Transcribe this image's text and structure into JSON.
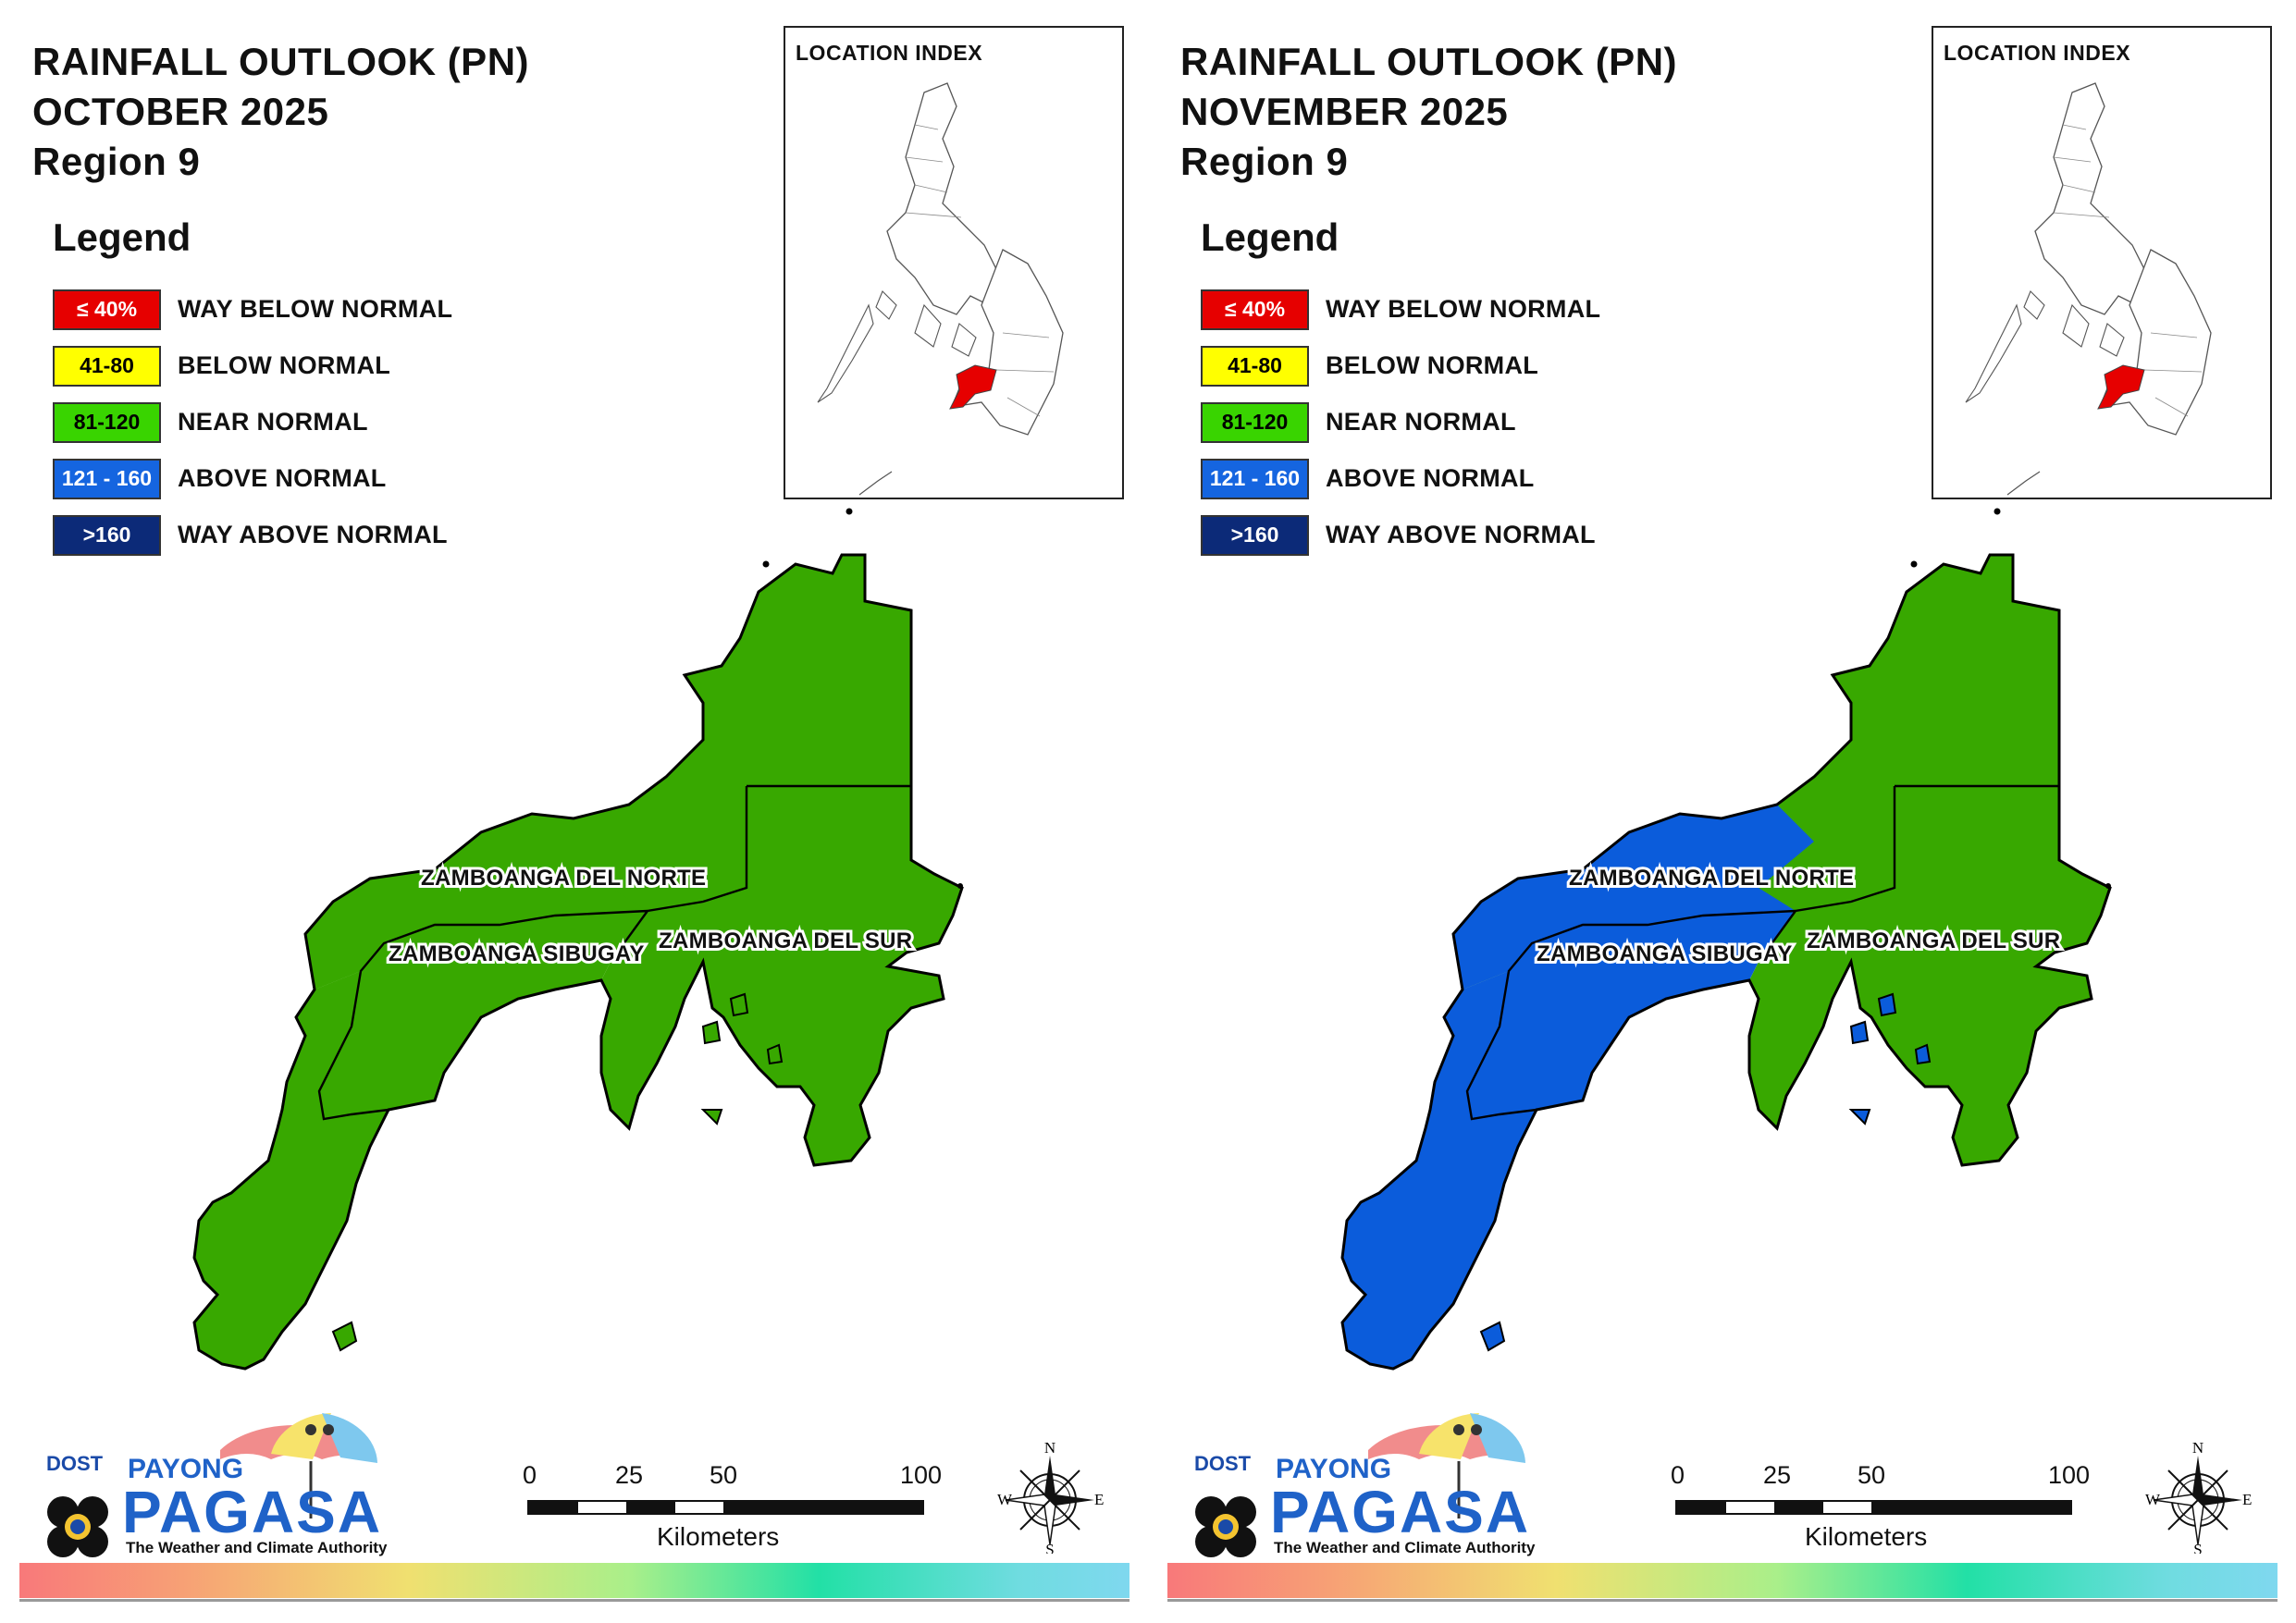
{
  "maps": [
    {
      "title": [
        "RAINFALL OUTLOOK (PN)",
        "OCTOBER 2025",
        "Region 9"
      ],
      "provinces": {
        "norte": {
          "label": "ZAMBOANGA DEL NORTE",
          "category": "NEAR NORMAL"
        },
        "sibugay": {
          "label": "ZAMBOANGA SIBUGAY",
          "category": "NEAR NORMAL"
        },
        "sur": {
          "label": "ZAMBOANGA DEL SUR",
          "category": "NEAR NORMAL"
        },
        "west": {
          "category": "NEAR NORMAL"
        }
      }
    },
    {
      "title": [
        "RAINFALL OUTLOOK (PN)",
        "NOVEMBER 2025",
        "Region 9"
      ],
      "provinces": {
        "norte": {
          "label": "ZAMBOANGA DEL NORTE",
          "category": "NEAR NORMAL",
          "west_category": "ABOVE NORMAL"
        },
        "sibugay": {
          "label": "ZAMBOANGA SIBUGAY",
          "category": "ABOVE NORMAL"
        },
        "sur": {
          "label": "ZAMBOANGA DEL SUR",
          "category": "NEAR NORMAL"
        },
        "west": {
          "category": "ABOVE NORMAL"
        }
      }
    }
  ],
  "legend": {
    "heading": "Legend",
    "items": [
      {
        "range": "≤ 40%",
        "label": "WAY BELOW NORMAL",
        "color": "#e60000",
        "text_color": "#ffffff"
      },
      {
        "range": "41-80",
        "label": "BELOW NORMAL",
        "color": "#ffff00",
        "text_color": "#000000"
      },
      {
        "range": "81-120",
        "label": "NEAR NORMAL",
        "color": "#39d400",
        "text_color": "#000000"
      },
      {
        "range": "121 - 160",
        "label": "ABOVE NORMAL",
        "color": "#1565e0",
        "text_color": "#ffffff"
      },
      {
        "range": ">160",
        "label": "WAY ABOVE NORMAL",
        "color": "#0c2a78",
        "text_color": "#ffffff"
      }
    ]
  },
  "map_fill_colors": {
    "NEAR NORMAL": "#38a800",
    "ABOVE NORMAL": "#0b5cdb"
  },
  "location_index": {
    "title": "LOCATION INDEX",
    "highlight_color": "#e60000"
  },
  "scale_bar": {
    "ticks": [
      "0",
      "25",
      "50",
      "100"
    ],
    "unit": "Kilometers"
  },
  "compass": {
    "n": "N",
    "s": "S",
    "e": "E",
    "w": "W"
  },
  "logo": {
    "dost": "DOST",
    "payong": "PAYONG",
    "pagasa": "PAGASA",
    "tagline": "The Weather and Climate Authority"
  }
}
